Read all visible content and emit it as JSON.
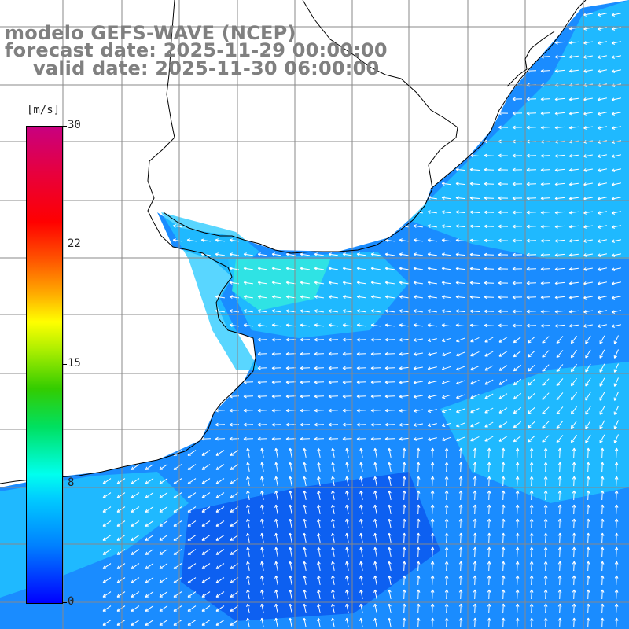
{
  "title": {
    "line1": "modelo GEFS-WAVE (NCEP)",
    "line2": "forecast date: 2025-11-29 00:00:00",
    "line3": "valid date: 2025-11-30 06:00:00"
  },
  "colorbar": {
    "unit": "[m/s]",
    "min": 0,
    "max": 30,
    "ticks": [
      "30",
      "22",
      "15",
      "8",
      "0"
    ],
    "tick_values": [
      30,
      22,
      15,
      8,
      0
    ],
    "colors": [
      "#0000ff",
      "#0080ff",
      "#00ccff",
      "#00ffee",
      "#00e060",
      "#33cc00",
      "#aaee00",
      "#ffff00",
      "#ffaa00",
      "#ff5500",
      "#ff0000",
      "#e8003c",
      "#c80080"
    ]
  },
  "map": {
    "land_color": "#ffffff",
    "grid_color": "#888888",
    "coastline_color": "#000000",
    "arrow_color": "#ffffff"
  }
}
